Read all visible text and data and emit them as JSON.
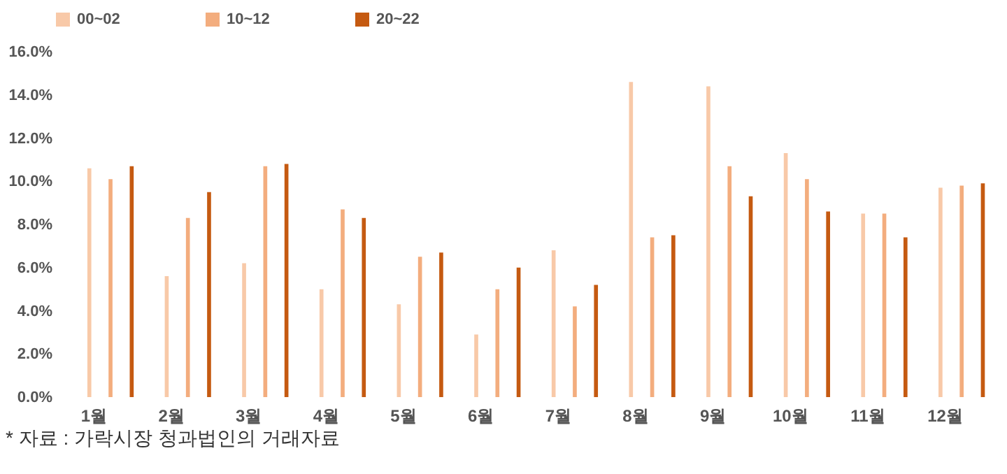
{
  "chart_data": {
    "type": "bar",
    "categories": [
      "1월",
      "2월",
      "3월",
      "4월",
      "5월",
      "6월",
      "7월",
      "8월",
      "9월",
      "10월",
      "11월",
      "12월"
    ],
    "series": [
      {
        "name": "00~02",
        "color": "#f8c9a8",
        "values": [
          10.6,
          5.6,
          6.2,
          5.0,
          4.3,
          2.9,
          6.8,
          14.6,
          14.4,
          11.3,
          8.5,
          9.7
        ]
      },
      {
        "name": "10~12",
        "color": "#f3ad7e",
        "values": [
          10.1,
          8.3,
          10.7,
          8.7,
          6.5,
          5.0,
          4.2,
          7.4,
          10.7,
          10.1,
          8.5,
          9.8
        ]
      },
      {
        "name": "20~22",
        "color": "#c55a11",
        "values": [
          10.7,
          9.5,
          10.8,
          8.3,
          6.7,
          6.0,
          5.2,
          7.5,
          9.3,
          8.6,
          7.4,
          9.9
        ]
      }
    ],
    "ylim": [
      0,
      16
    ],
    "yticks": [
      {
        "value": 0,
        "label": "0.0%"
      },
      {
        "value": 2,
        "label": "2.0%"
      },
      {
        "value": 4,
        "label": "4.0%"
      },
      {
        "value": 6,
        "label": "6.0%"
      },
      {
        "value": 8,
        "label": "8.0%"
      },
      {
        "value": 10,
        "label": "10.0%"
      },
      {
        "value": 12,
        "label": "12.0%"
      },
      {
        "value": 14,
        "label": "14.0%"
      },
      {
        "value": 16,
        "label": "16.0%"
      }
    ],
    "grid": false,
    "legend": "top",
    "annotations": [
      "* 자료 : 가락시장 청과법인의 거래자료"
    ]
  }
}
